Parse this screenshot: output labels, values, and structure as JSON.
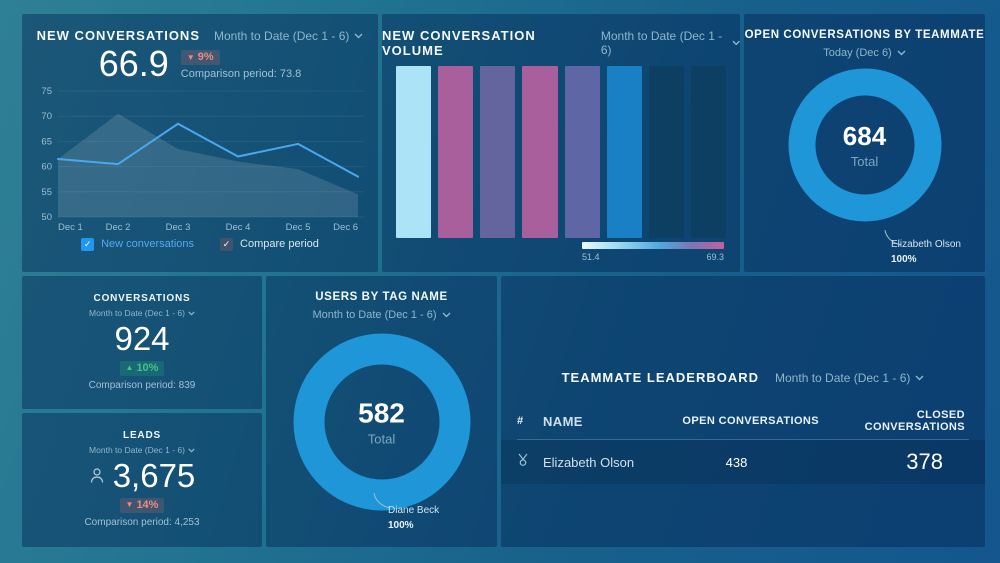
{
  "colors": {
    "accent_blue": "#1e96d7",
    "line_blue": "#4da7f0",
    "positive": "#42c584",
    "negative": "#ef8a80",
    "panel_bg": "rgba(0,28,74,0.40)"
  },
  "panels": {
    "new_conversations": {
      "title": "NEW CONVERSATIONS",
      "period": "Month to Date (Dec 1 - 6)",
      "value": "66.9",
      "delta": "9%",
      "delta_direction": "down",
      "comparison": "Comparison period: 73.8",
      "legend": [
        {
          "label": "New conversations",
          "checked": true,
          "color": "#2196f3"
        },
        {
          "label": "Compare period",
          "checked": true,
          "color": "#41536a"
        }
      ]
    },
    "volume": {
      "title": "NEW CONVERSATION VOLUME",
      "period": "Month to Date (Dec 1 - 6)",
      "scale_min": "51.4",
      "scale_max": "69.3"
    },
    "open_by_teammate": {
      "title": "OPEN CONVERSATIONS BY TEAMMATE",
      "period": "Today (Dec 6)",
      "total": "684",
      "total_label": "Total",
      "slice_name": "Elizabeth Olson",
      "slice_pct": "100%"
    },
    "conversations_kpi": {
      "title": "CONVERSATIONS",
      "period": "Month to Date (Dec 1 - 6)",
      "value": "924",
      "delta": "10%",
      "delta_direction": "up",
      "comparison": "Comparison period: 839"
    },
    "leads_kpi": {
      "title": "LEADS",
      "period": "Month to Date (Dec 1 - 6)",
      "value": "3,675",
      "delta": "14%",
      "delta_direction": "down",
      "comparison": "Comparison period: 4,253"
    },
    "users_by_tag": {
      "title": "USERS BY TAG NAME",
      "period": "Month to Date (Dec 1 - 6)",
      "total": "582",
      "total_label": "Total",
      "slice_name": "Diane Beck",
      "slice_pct": "100%"
    },
    "leaderboard": {
      "title": "TEAMMATE LEADERBOARD",
      "period": "Month to Date (Dec 1 - 6)",
      "columns": [
        "#",
        "NAME",
        "OPEN CONVERSATIONS",
        "CLOSED CONVERSATIONS"
      ],
      "rows": [
        {
          "name": "Elizabeth Olson",
          "open": "438",
          "closed": "378"
        }
      ]
    }
  },
  "chart_data": [
    {
      "type": "line",
      "title": "NEW CONVERSATIONS",
      "x": [
        "Dec 1",
        "Dec 2",
        "Dec 3",
        "Dec 4",
        "Dec 5",
        "Dec 6"
      ],
      "ylim": [
        50,
        75
      ],
      "yticks": [
        50,
        55,
        60,
        65,
        70,
        75
      ],
      "grid": true,
      "legend_position": "bottom",
      "series": [
        {
          "name": "New conversations",
          "style": "line",
          "color": "#4da7f0",
          "values": [
            61.5,
            60.5,
            68.5,
            62,
            64.5,
            58
          ]
        },
        {
          "name": "Compare period",
          "style": "area",
          "color": "rgba(255,255,255,0.13)",
          "values": [
            61.5,
            70.5,
            63.5,
            61,
            59.5,
            54.5
          ]
        }
      ]
    },
    {
      "type": "bar",
      "title": "NEW CONVERSATION VOLUME",
      "note": "value encoded by color, all bars full height",
      "color_scale": {
        "min": 51.4,
        "max": 69.3
      },
      "bars": [
        {
          "value": 51.4,
          "color": "#ace3f6"
        },
        {
          "value": 69,
          "color": "#a95f9c"
        },
        {
          "value": 62,
          "color": "#64649f"
        },
        {
          "value": 69,
          "color": "#a95f9c"
        },
        {
          "value": 63,
          "color": "#5f66a5"
        },
        {
          "value": 57,
          "color": "#1a80c6"
        },
        {
          "value": null,
          "color": "#0d3f63"
        },
        {
          "value": null,
          "color": "#0d3f63"
        }
      ]
    },
    {
      "type": "pie",
      "title": "OPEN CONVERSATIONS BY TEAMMATE",
      "total": 684,
      "slices": [
        {
          "name": "Elizabeth Olson",
          "pct": 100,
          "color": "#1e96d7"
        }
      ]
    },
    {
      "type": "pie",
      "title": "USERS BY TAG NAME",
      "total": 582,
      "slices": [
        {
          "name": "Diane Beck",
          "pct": 100,
          "color": "#1e96d7"
        }
      ]
    },
    {
      "type": "table",
      "title": "TEAMMATE LEADERBOARD",
      "columns": [
        "#",
        "NAME",
        "OPEN CONVERSATIONS",
        "CLOSED CONVERSATIONS"
      ],
      "rows": [
        [
          "1",
          "Elizabeth Olson",
          438,
          378
        ]
      ]
    }
  ]
}
